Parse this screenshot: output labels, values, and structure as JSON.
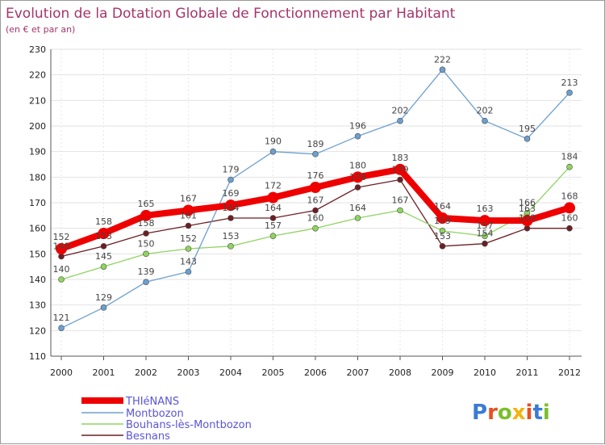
{
  "chart_data": {
    "type": "line",
    "title": "Evolution de la Dotation Globale de Fonctionnement par Habitant",
    "subtitle": "(en € et par an)",
    "x": [
      "2000",
      "2001",
      "2002",
      "2003",
      "2004",
      "2005",
      "2006",
      "2007",
      "2008",
      "2009",
      "2010",
      "2011",
      "2012"
    ],
    "ylim": [
      110,
      230
    ],
    "yticks": [
      110,
      120,
      130,
      140,
      150,
      160,
      170,
      180,
      190,
      200,
      210,
      220,
      230
    ],
    "series": [
      {
        "name": "THIéNANS",
        "color": "#ee0000",
        "values": [
          152,
          158,
          165,
          167,
          169,
          172,
          176,
          180,
          183,
          164,
          163,
          163,
          168
        ]
      },
      {
        "name": "Montbozon",
        "color": "#6c9fcf",
        "values": [
          121,
          129,
          139,
          143,
          179,
          190,
          189,
          196,
          202,
          222,
          202,
          195,
          213
        ]
      },
      {
        "name": "Bouhans-lès-Montbozon",
        "color": "#8fd460",
        "values": [
          140,
          145,
          150,
          152,
          153,
          157,
          160,
          164,
          167,
          159,
          157,
          166,
          184
        ]
      },
      {
        "name": "Besnans",
        "color": "#6b1f24",
        "values": [
          149,
          153,
          158,
          161,
          164,
          164,
          167,
          176,
          179,
          153,
          154,
          160,
          160
        ]
      }
    ]
  },
  "logo": {
    "text": "Proxiti"
  }
}
